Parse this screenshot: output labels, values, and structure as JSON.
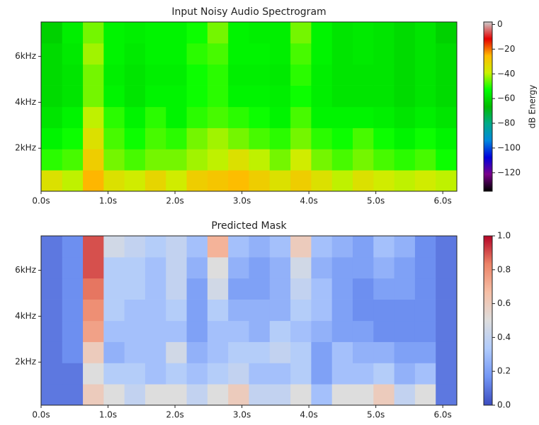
{
  "chart_data": [
    {
      "type": "heatmap",
      "title": "Input Noisy Audio Spectrogram",
      "colorbar_label": "dB Energy",
      "x": [
        0.16,
        0.47,
        0.78,
        1.09,
        1.4,
        1.71,
        2.02,
        2.33,
        2.64,
        2.95,
        3.26,
        3.57,
        3.88,
        4.19,
        4.5,
        4.81,
        5.12,
        5.43,
        5.74,
        6.05
      ],
      "y": [
        590,
        1510,
        2430,
        3350,
        4270,
        5200,
        6120,
        7040
      ],
      "z": [
        [
          -35,
          -40,
          -25,
          -35,
          -38,
          -32,
          -38,
          -30,
          -28,
          -26,
          -30,
          -35,
          -30,
          -35,
          -40,
          -35,
          -38,
          -40,
          -38,
          -40
        ],
        [
          -50,
          -48,
          -30,
          -45,
          -48,
          -45,
          -45,
          -42,
          -40,
          -35,
          -40,
          -45,
          -38,
          -45,
          -48,
          -45,
          -48,
          -50,
          -48,
          -52
        ],
        [
          -55,
          -52,
          -35,
          -48,
          -52,
          -48,
          -50,
          -45,
          -42,
          -45,
          -48,
          -50,
          -45,
          -50,
          -52,
          -48,
          -52,
          -55,
          -52,
          -55
        ],
        [
          -58,
          -55,
          -40,
          -50,
          -55,
          -50,
          -55,
          -50,
          -48,
          -50,
          -52,
          -55,
          -48,
          -55,
          -55,
          -55,
          -56,
          -58,
          -56,
          -58
        ],
        [
          -60,
          -58,
          -45,
          -55,
          -58,
          -55,
          -55,
          -52,
          -50,
          -55,
          -55,
          -56,
          -52,
          -56,
          -58,
          -58,
          -58,
          -60,
          -58,
          -60
        ],
        [
          -60,
          -58,
          -45,
          -56,
          -58,
          -56,
          -56,
          -52,
          -50,
          -56,
          -56,
          -57,
          -50,
          -56,
          -58,
          -58,
          -58,
          -60,
          -58,
          -60
        ],
        [
          -60,
          -57,
          -42,
          -55,
          -57,
          -55,
          -55,
          -50,
          -48,
          -55,
          -55,
          -56,
          -48,
          -55,
          -58,
          -57,
          -58,
          -60,
          -58,
          -60
        ],
        [
          -62,
          -56,
          -45,
          -55,
          -56,
          -55,
          -55,
          -52,
          -45,
          -55,
          -56,
          -56,
          -45,
          -55,
          -58,
          -57,
          -58,
          -60,
          -58,
          -62
        ]
      ],
      "xlim": [
        0,
        6.21
      ],
      "ylim": [
        125,
        7500
      ],
      "zlim": [
        -135,
        2
      ],
      "xticks": [
        {
          "value": 0,
          "label": "0.0s"
        },
        {
          "value": 1,
          "label": "1.0s"
        },
        {
          "value": 2,
          "label": "2.0s"
        },
        {
          "value": 3,
          "label": "3.0s"
        },
        {
          "value": 4,
          "label": "4.0s"
        },
        {
          "value": 5,
          "label": "5.0s"
        },
        {
          "value": 6,
          "label": "6.0s"
        }
      ],
      "yticks": [
        {
          "value": 2000,
          "label": "2kHz"
        },
        {
          "value": 4000,
          "label": "4kHz"
        },
        {
          "value": 6000,
          "label": "6kHz"
        }
      ],
      "zticks": [
        0,
        {
          "value": -20,
          "label": "−20"
        },
        {
          "value": -40,
          "label": "−40"
        },
        {
          "value": -60,
          "label": "−60"
        },
        {
          "value": -80,
          "label": "−80"
        },
        {
          "value": -100,
          "label": "−100"
        },
        {
          "value": -120,
          "label": "−120"
        }
      ],
      "colors": [
        "#000000",
        "#7a008a",
        "#0000dd",
        "#0088dd",
        "#00aa88",
        "#00bb00",
        "#00ff00",
        "#ccf000",
        "#ffbb00",
        "#e50000",
        "#cccccc"
      ]
    },
    {
      "type": "heatmap",
      "title": "Predicted Mask",
      "x": [
        0.16,
        0.47,
        0.78,
        1.09,
        1.4,
        1.71,
        2.02,
        2.33,
        2.64,
        2.95,
        3.26,
        3.57,
        3.88,
        4.19,
        4.5,
        4.81,
        5.12,
        5.43,
        5.74,
        6.05
      ],
      "y": [
        590,
        1510,
        2430,
        3350,
        4270,
        5200,
        6120,
        7040
      ],
      "z": [
        [
          0.1,
          0.1,
          0.6,
          0.5,
          0.4,
          0.5,
          0.5,
          0.4,
          0.5,
          0.6,
          0.4,
          0.4,
          0.5,
          0.3,
          0.5,
          0.5,
          0.6,
          0.4,
          0.5,
          0.1
        ],
        [
          0.1,
          0.1,
          0.5,
          0.35,
          0.35,
          0.3,
          0.35,
          0.3,
          0.35,
          0.4,
          0.3,
          0.3,
          0.35,
          0.2,
          0.3,
          0.3,
          0.35,
          0.25,
          0.3,
          0.1
        ],
        [
          0.1,
          0.15,
          0.6,
          0.25,
          0.3,
          0.3,
          0.45,
          0.25,
          0.3,
          0.35,
          0.35,
          0.4,
          0.35,
          0.2,
          0.3,
          0.25,
          0.25,
          0.2,
          0.2,
          0.1
        ],
        [
          0.1,
          0.15,
          0.75,
          0.3,
          0.3,
          0.3,
          0.3,
          0.2,
          0.3,
          0.3,
          0.25,
          0.35,
          0.3,
          0.25,
          0.2,
          0.2,
          0.15,
          0.15,
          0.15,
          0.1
        ],
        [
          0.1,
          0.15,
          0.8,
          0.35,
          0.3,
          0.3,
          0.35,
          0.2,
          0.35,
          0.25,
          0.25,
          0.25,
          0.35,
          0.3,
          0.2,
          0.15,
          0.15,
          0.15,
          0.15,
          0.1
        ],
        [
          0.1,
          0.15,
          0.85,
          0.35,
          0.35,
          0.3,
          0.4,
          0.2,
          0.45,
          0.2,
          0.2,
          0.25,
          0.4,
          0.3,
          0.2,
          0.15,
          0.2,
          0.2,
          0.15,
          0.1
        ],
        [
          0.1,
          0.15,
          0.9,
          0.35,
          0.35,
          0.3,
          0.4,
          0.25,
          0.5,
          0.25,
          0.2,
          0.25,
          0.45,
          0.25,
          0.2,
          0.2,
          0.25,
          0.2,
          0.15,
          0.1
        ],
        [
          0.1,
          0.15,
          0.9,
          0.45,
          0.4,
          0.35,
          0.4,
          0.3,
          0.7,
          0.3,
          0.25,
          0.3,
          0.6,
          0.3,
          0.25,
          0.2,
          0.3,
          0.25,
          0.15,
          0.1
        ]
      ],
      "xlim": [
        0,
        6.21
      ],
      "ylim": [
        125,
        7500
      ],
      "zlim": [
        0,
        1
      ],
      "xticks": [
        {
          "value": 0,
          "label": "0.0s"
        },
        {
          "value": 1,
          "label": "1.0s"
        },
        {
          "value": 2,
          "label": "2.0s"
        },
        {
          "value": 3,
          "label": "3.0s"
        },
        {
          "value": 4,
          "label": "4.0s"
        },
        {
          "value": 5,
          "label": "5.0s"
        },
        {
          "value": 6,
          "label": "6.0s"
        }
      ],
      "yticks": [
        {
          "value": 2000,
          "label": "2kHz"
        },
        {
          "value": 4000,
          "label": "4kHz"
        },
        {
          "value": 6000,
          "label": "6kHz"
        }
      ],
      "zticks": [
        {
          "value": 0,
          "label": "0.0"
        },
        0.2,
        0.4,
        0.6,
        0.8,
        {
          "value": 1,
          "label": "1.0"
        }
      ],
      "colors": [
        "#3b4cc0",
        "#7396f5",
        "#b0cbfc",
        "#dddddd",
        "#f6bfa6",
        "#ec8367",
        "#b40426"
      ]
    }
  ]
}
